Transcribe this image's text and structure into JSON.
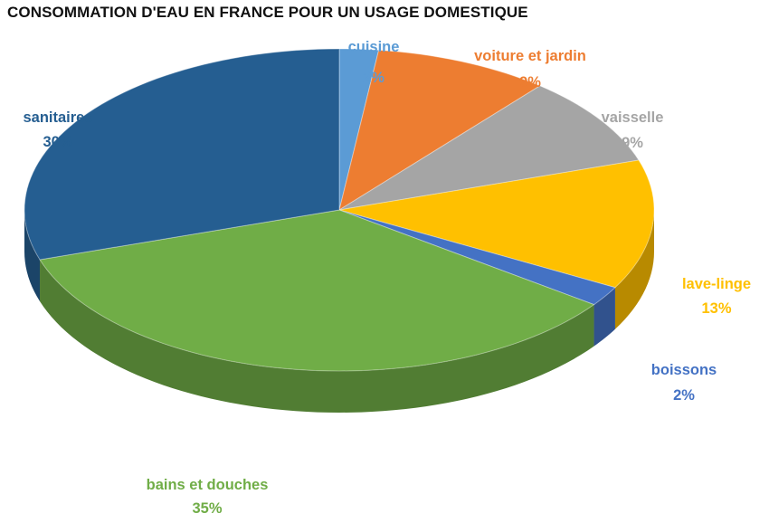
{
  "chart_data": {
    "type": "pie",
    "title": "CONSOMMATION D'EAU EN FRANCE POUR UN USAGE DOMESTIQUE",
    "categories": [
      "cuisine",
      "voiture et jardin",
      "vaisselle",
      "lave-linge",
      "boissons",
      "bains et douches",
      "sanitaires"
    ],
    "values": [
      2,
      9,
      9,
      13,
      2,
      35,
      30
    ],
    "value_labels": [
      "2%",
      "9%",
      "9%",
      "13%",
      "2%",
      "35%",
      "30%"
    ],
    "colors": [
      "#5b9bd5",
      "#ed7d31",
      "#a5a5a5",
      "#ffc000",
      "#4472c4",
      "#70ad47",
      "#255e91"
    ],
    "label_colors": [
      "#5b9bd5",
      "#ed7d31",
      "#a5a5a5",
      "#ffc000",
      "#4472c4",
      "#70ad47",
      "#255e91"
    ],
    "style": "3d-pie",
    "legend": "none"
  }
}
